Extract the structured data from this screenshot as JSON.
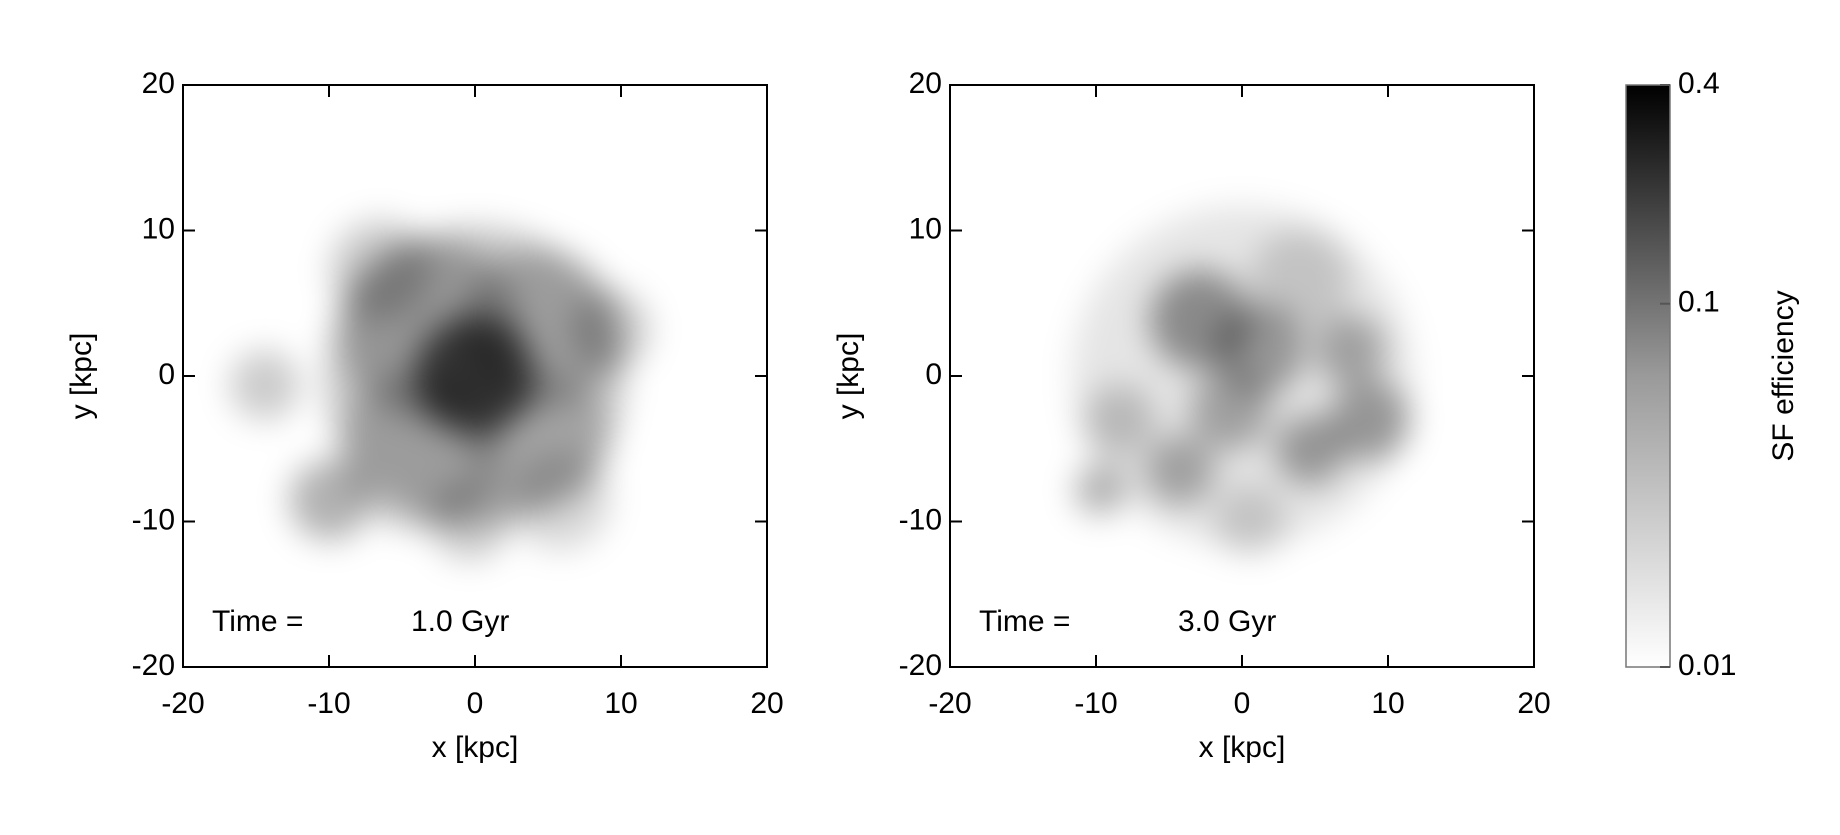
{
  "chart_data": [
    {
      "type": "map",
      "xlabel": "x [kpc]",
      "ylabel": "y [kpc]",
      "xlim": [
        -20,
        20
      ],
      "ylim": [
        -20,
        20
      ],
      "xticks": [
        -20,
        -10,
        0,
        10,
        20
      ],
      "yticks": [
        -20,
        -10,
        0,
        10,
        20
      ],
      "annotation": "Time =",
      "time_label": "1.0 Gyr"
    },
    {
      "type": "map",
      "xlabel": "x [kpc]",
      "ylabel": "y [kpc]",
      "xlim": [
        -20,
        20
      ],
      "ylim": [
        -20,
        20
      ],
      "xticks": [
        -20,
        -10,
        0,
        10,
        20
      ],
      "yticks": [
        -20,
        -10,
        0,
        10,
        20
      ],
      "annotation": "Time =",
      "time_label": "3.0 Gyr"
    },
    {
      "type": "colorbar",
      "label": "SF efficiency",
      "log": true,
      "ylim": [
        0.01,
        0.4
      ],
      "yticks": [
        0.01,
        0.1,
        0.4
      ]
    }
  ]
}
